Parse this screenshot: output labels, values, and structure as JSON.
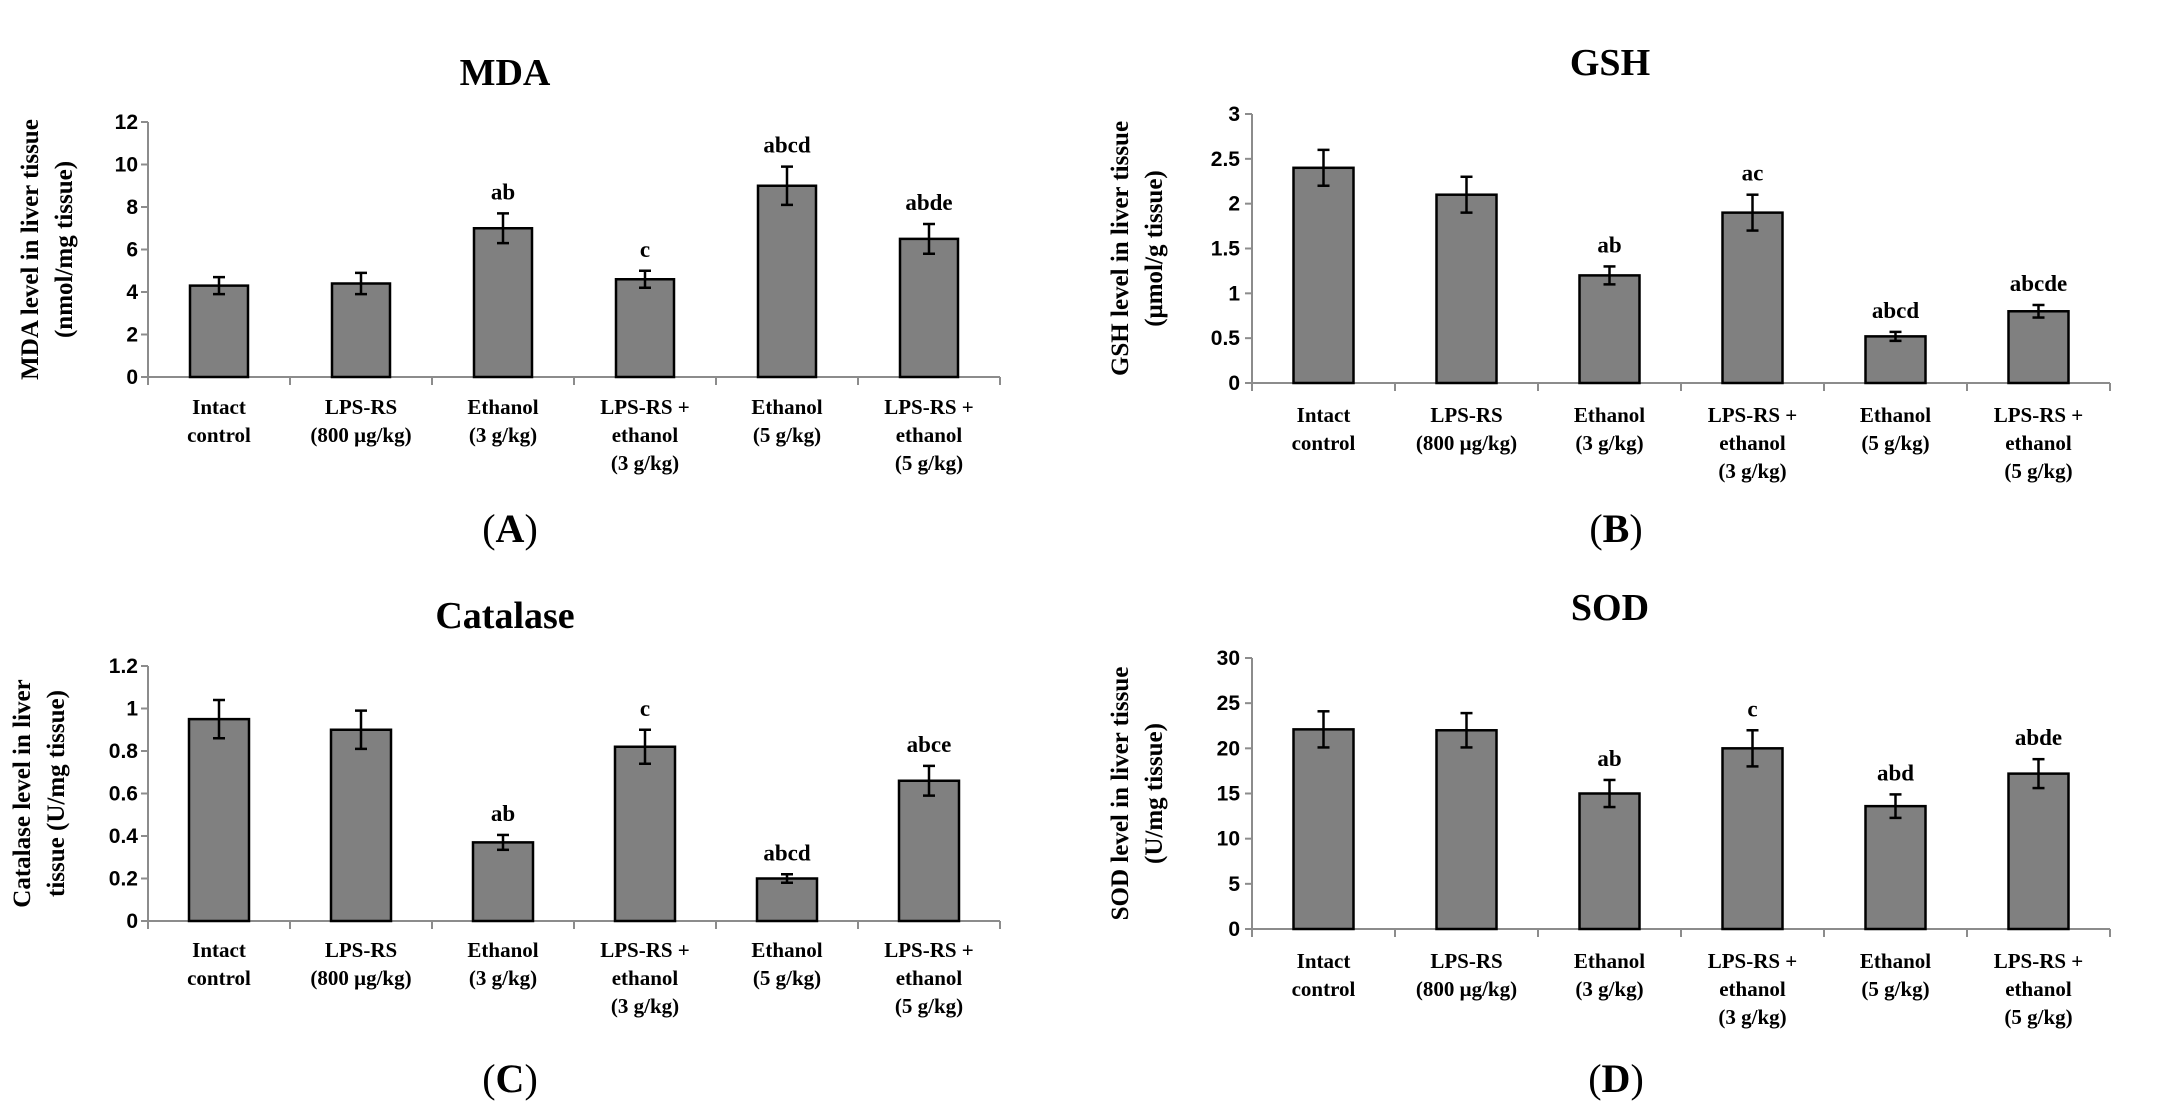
{
  "figure": {
    "panel_labels": [
      "A",
      "B",
      "C",
      "D"
    ]
  },
  "colors": {
    "bar_fill": "#808080",
    "bar_stroke": "#000000",
    "axis": "#8c8c8c",
    "text": "#000000"
  },
  "chart_data": [
    {
      "type": "bar",
      "title": "MDA",
      "ylabel_lines": [
        "MDA level in liver tissue",
        "(nmol/mg tissue)"
      ],
      "ylim": [
        0,
        12
      ],
      "yticks": [
        0,
        2,
        4,
        6,
        8,
        10,
        12
      ],
      "categories": [
        [
          "Intact",
          "control"
        ],
        [
          "LPS-RS",
          "(800 μg/kg)"
        ],
        [
          "Ethanol",
          "(3 g/kg)"
        ],
        [
          "LPS-RS +",
          "ethanol",
          "(3 g/kg)"
        ],
        [
          "Ethanol",
          "(5 g/kg)"
        ],
        [
          "LPS-RS +",
          "ethanol",
          "(5 g/kg)"
        ]
      ],
      "values": [
        4.3,
        4.4,
        7.0,
        4.6,
        9.0,
        6.5
      ],
      "errors": [
        0.4,
        0.5,
        0.7,
        0.4,
        0.9,
        0.7
      ],
      "annotations": [
        "",
        "",
        "ab",
        "c",
        "abcd",
        "abde"
      ],
      "grid": false
    },
    {
      "type": "bar",
      "title": "GSH",
      "ylabel_lines": [
        "GSH level in liver tissue",
        "(μmol/g tissue)"
      ],
      "ylim": [
        0,
        3
      ],
      "yticks": [
        0,
        0.5,
        1,
        1.5,
        2,
        2.5,
        3
      ],
      "categories": [
        [
          "Intact",
          "control"
        ],
        [
          "LPS-RS",
          "(800 μg/kg)"
        ],
        [
          "Ethanol",
          "(3 g/kg)"
        ],
        [
          "LPS-RS +",
          "ethanol",
          "(3 g/kg)"
        ],
        [
          "Ethanol",
          "(5 g/kg)"
        ],
        [
          "LPS-RS +",
          "ethanol",
          "(5 g/kg)"
        ]
      ],
      "values": [
        2.4,
        2.1,
        1.2,
        1.9,
        0.52,
        0.8
      ],
      "errors": [
        0.2,
        0.2,
        0.1,
        0.2,
        0.05,
        0.07
      ],
      "annotations": [
        "",
        "",
        "ab",
        "ac",
        "abcd",
        "abcde"
      ],
      "grid": false
    },
    {
      "type": "bar",
      "title": "Catalase",
      "ylabel_lines": [
        "Catalase level in liver",
        "tissue (U/mg tissue)"
      ],
      "ylim": [
        0,
        1.2
      ],
      "yticks": [
        0,
        0.2,
        0.4,
        0.6,
        0.8,
        1,
        1.2
      ],
      "categories": [
        [
          "Intact",
          "control"
        ],
        [
          "LPS-RS",
          "(800 μg/kg)"
        ],
        [
          "Ethanol",
          "(3 g/kg)"
        ],
        [
          "LPS-RS +",
          "ethanol",
          "(3 g/kg)"
        ],
        [
          "Ethanol",
          "(5 g/kg)"
        ],
        [
          "LPS-RS +",
          "ethanol",
          "(5 g/kg)"
        ]
      ],
      "values": [
        0.95,
        0.9,
        0.37,
        0.82,
        0.2,
        0.66
      ],
      "errors": [
        0.09,
        0.09,
        0.035,
        0.08,
        0.02,
        0.07
      ],
      "annotations": [
        "",
        "",
        "ab",
        "c",
        "abcd",
        "abce"
      ],
      "grid": false
    },
    {
      "type": "bar",
      "title": "SOD",
      "ylabel_lines": [
        "SOD level in liver tissue",
        "(U/mg tissue)"
      ],
      "ylim": [
        0,
        30
      ],
      "yticks": [
        0,
        5,
        10,
        15,
        20,
        25,
        30
      ],
      "categories": [
        [
          "Intact",
          "control"
        ],
        [
          "LPS-RS",
          "(800 μg/kg)"
        ],
        [
          "Ethanol",
          "(3 g/kg)"
        ],
        [
          "LPS-RS +",
          "ethanol",
          "(3 g/kg)"
        ],
        [
          "Ethanol",
          "(5 g/kg)"
        ],
        [
          "LPS-RS +",
          "ethanol",
          "(5 g/kg)"
        ]
      ],
      "values": [
        22.1,
        22.0,
        15.0,
        20.0,
        13.6,
        17.2
      ],
      "errors": [
        2.0,
        1.9,
        1.5,
        2.0,
        1.3,
        1.6
      ],
      "annotations": [
        "",
        "",
        "ab",
        "c",
        "abd",
        "abde"
      ],
      "grid": false
    }
  ]
}
